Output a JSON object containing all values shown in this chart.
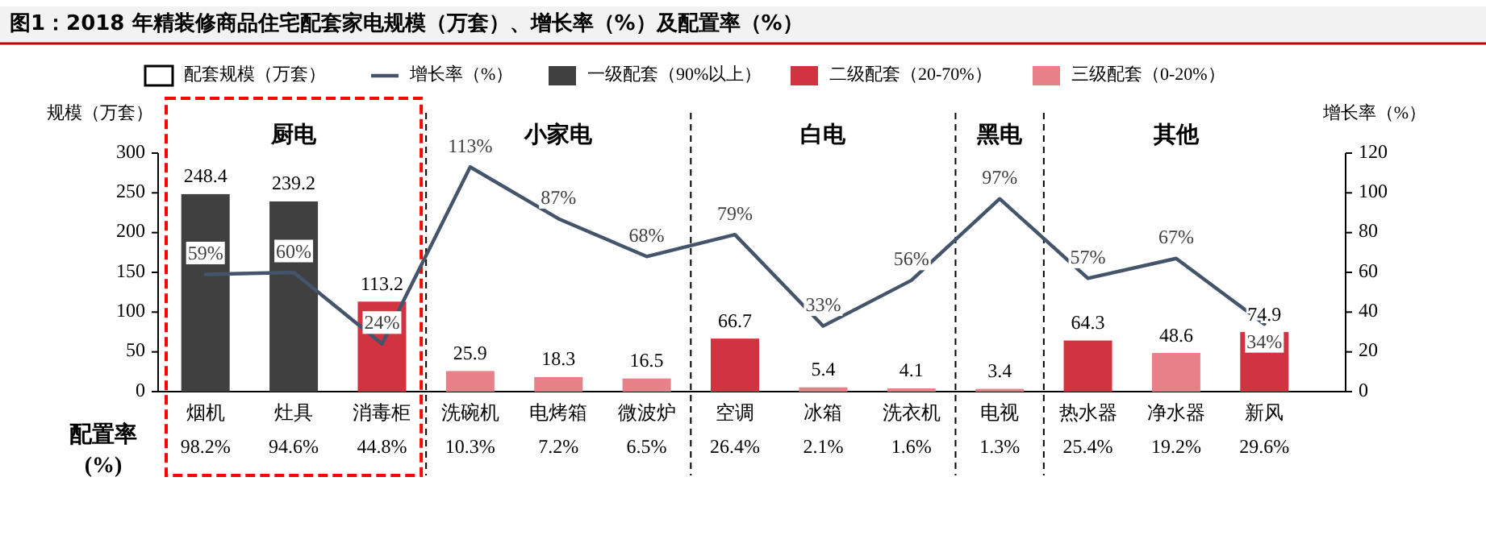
{
  "chart_data": {
    "type": "bar",
    "title": "图1：2018 年精装修商品住宅配套家电规模（万套）、增长率（%）及配置率（%）",
    "ylabel": "规模（万套）",
    "y2label": "增长率（%）",
    "legend_title": "配套规模（万套）",
    "legend": "top",
    "categories": [
      "烟机",
      "灶具",
      "消毒柜",
      "洗碗机",
      "电烤箱",
      "微波炉",
      "空调",
      "冰箱",
      "洗衣机",
      "电视",
      "热水器",
      "净水器",
      "新风"
    ],
    "series": [
      {
        "name": "增长率（%）",
        "type": "line",
        "axis": "y2",
        "color": "#44546a",
        "values": [
          59,
          60,
          24,
          113,
          87,
          68,
          79,
          33,
          56,
          97,
          57,
          67,
          34
        ],
        "value_labels": [
          "59%",
          "60%",
          "24%",
          "113%",
          "87%",
          "68%",
          "79%",
          "33%",
          "56%",
          "97%",
          "57%",
          "67%",
          "34%"
        ]
      },
      {
        "name": "一级配套（90%以上）",
        "color": "#404040",
        "values": [
          248.4,
          239.2,
          null,
          null,
          null,
          null,
          null,
          null,
          null,
          null,
          null,
          null,
          null
        ],
        "value_labels": [
          "248.4",
          "239.2",
          null,
          null,
          null,
          null,
          null,
          null,
          null,
          null,
          null,
          null,
          null
        ]
      },
      {
        "name": "二级配套（20-70%）",
        "color": "#d13440",
        "values": [
          null,
          null,
          113.2,
          null,
          null,
          null,
          66.7,
          null,
          null,
          null,
          64.3,
          null,
          74.9
        ],
        "value_labels": [
          null,
          null,
          "113.2",
          null,
          null,
          null,
          "66.7",
          null,
          null,
          null,
          "64.3",
          null,
          "74.9"
        ]
      },
      {
        "name": "三级配套（0-20%）",
        "color": "#e8808a",
        "values": [
          null,
          null,
          null,
          25.9,
          18.3,
          16.5,
          null,
          5.4,
          4.1,
          3.4,
          null,
          48.6,
          null
        ],
        "value_labels": [
          null,
          null,
          null,
          "25.9",
          "18.3",
          "16.5",
          null,
          "5.4",
          "4.1",
          "3.4",
          null,
          "48.6",
          null
        ]
      }
    ],
    "ylim": [
      0,
      300
    ],
    "yticks": [
      0,
      50,
      100,
      150,
      200,
      250,
      300
    ],
    "y2lim": [
      0,
      120
    ],
    "y2ticks": [
      0,
      20,
      40,
      60,
      80,
      100,
      120
    ],
    "annotations": [
      "厨电",
      "小家电",
      "白电",
      "黑电",
      "其他",
      "配置率\n(%)",
      "98.2%",
      "94.6%",
      "44.8%",
      "10.3%",
      "7.2%",
      "6.5%",
      "26.4%",
      "2.1%",
      "1.6%",
      "1.3%",
      "25.4%",
      "19.2%",
      "29.6%"
    ]
  }
}
